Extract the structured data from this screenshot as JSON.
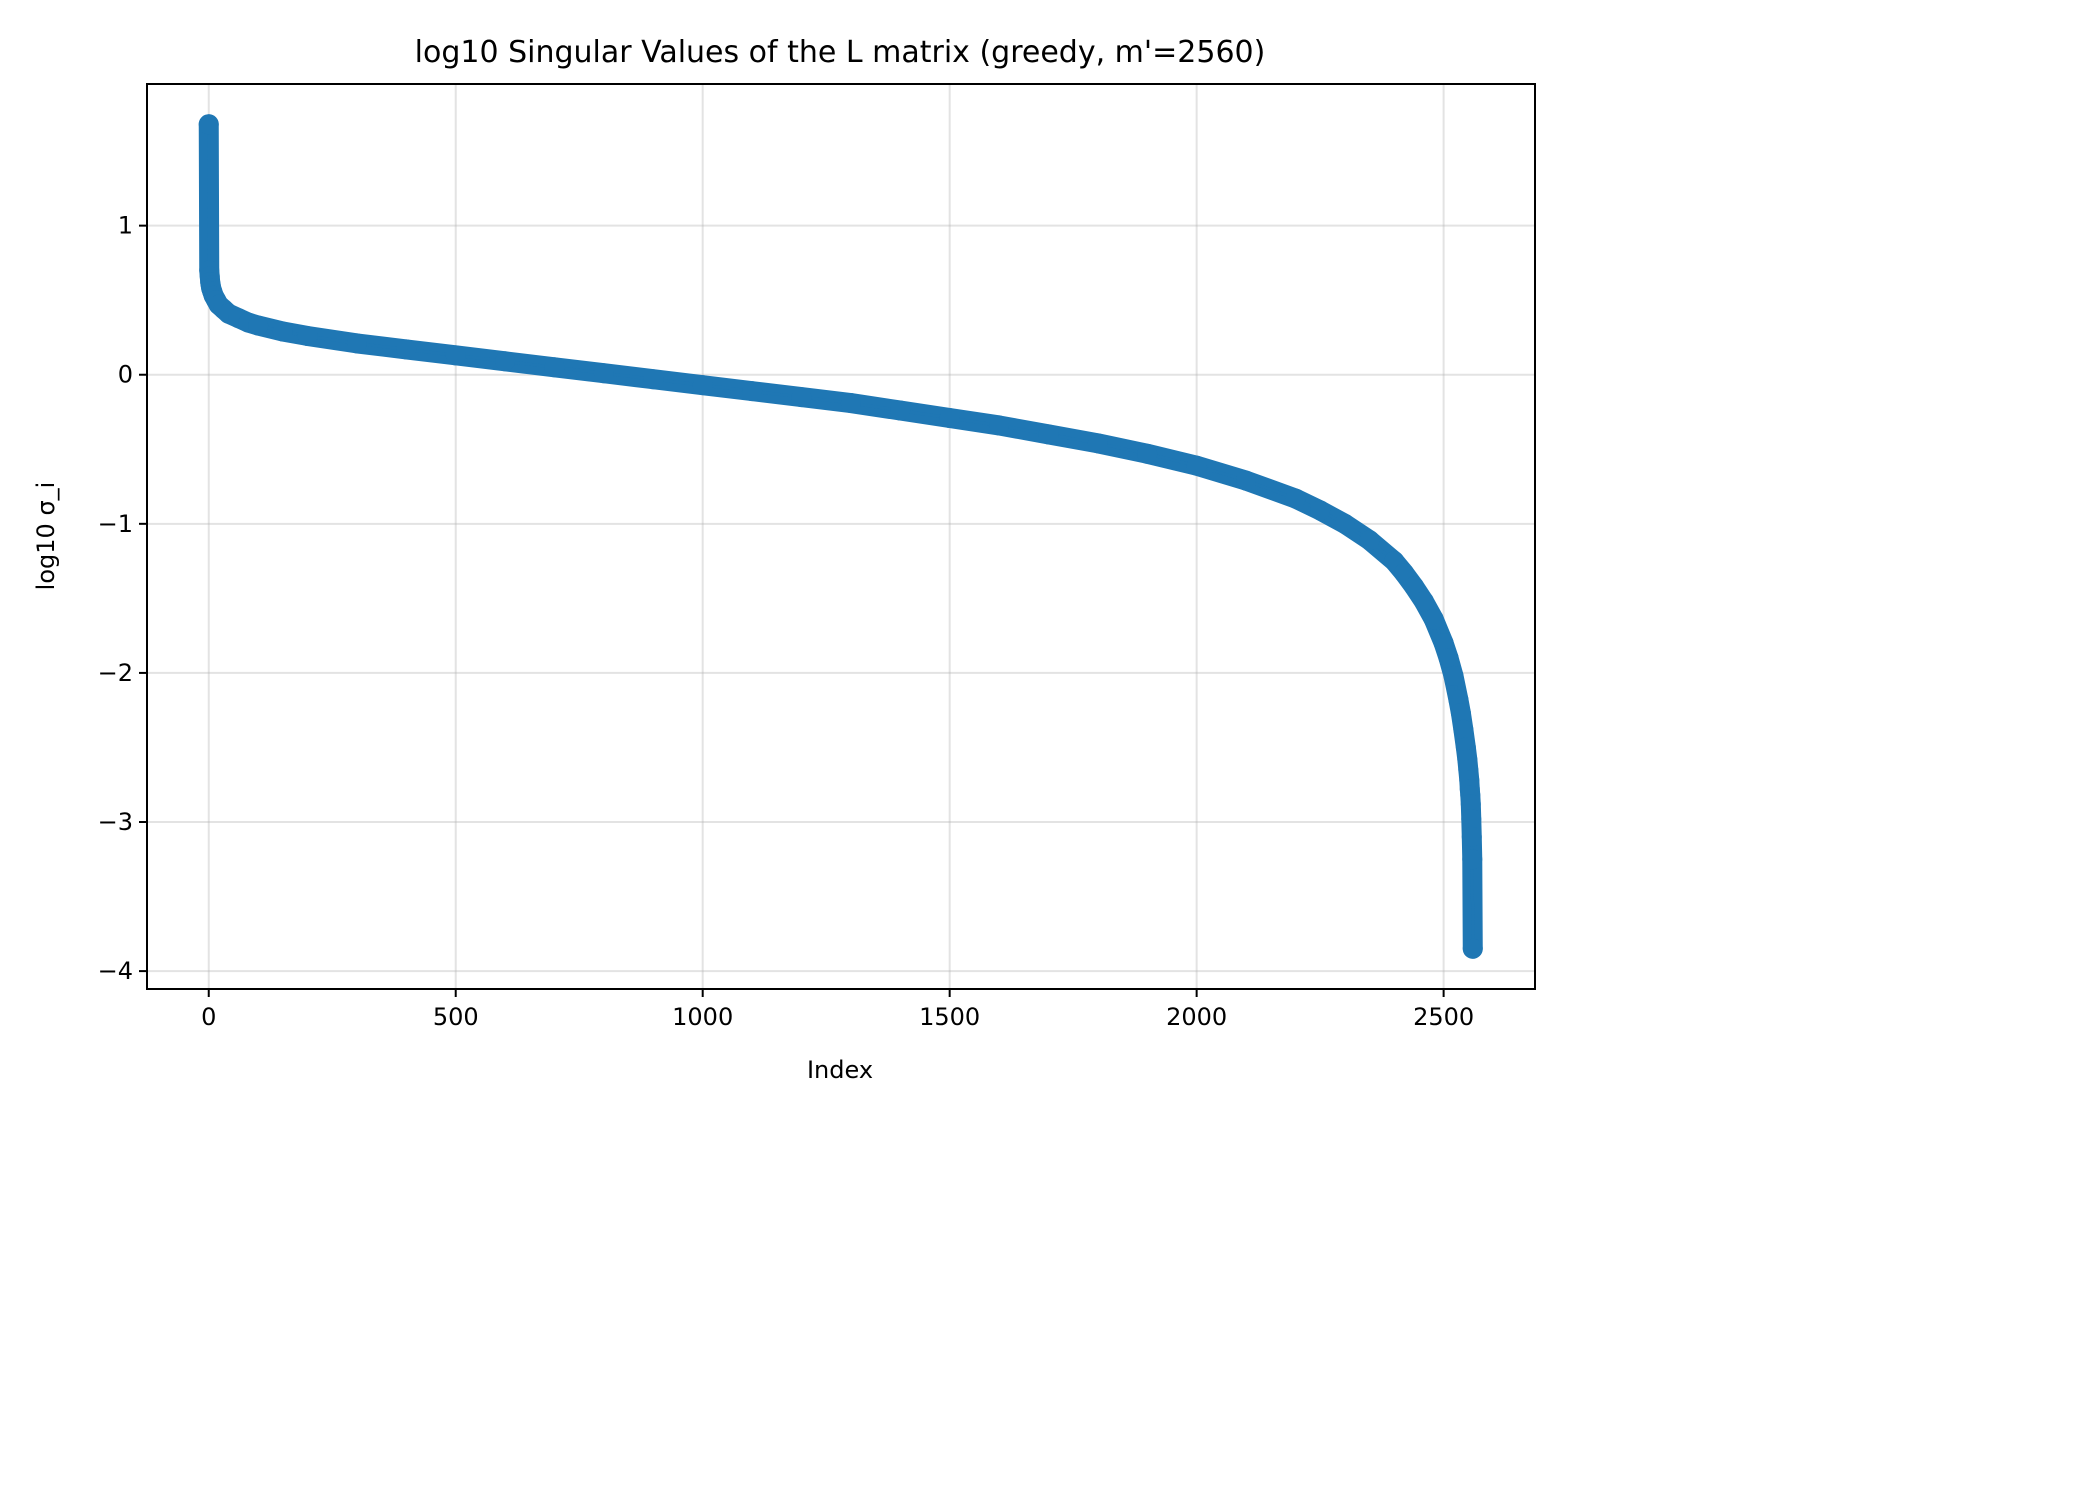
{
  "chart_data": {
    "type": "line",
    "title": "log10 Singular Values of the L matrix (greedy, m'=2560)",
    "xlabel": "Index",
    "ylabel": "log10 σ_i",
    "xlim": [
      -125,
      2685
    ],
    "ylim": [
      -4.12,
      1.95
    ],
    "xticks": [
      0,
      500,
      1000,
      1500,
      2000,
      2500
    ],
    "xtick_labels": [
      "0",
      "500",
      "1000",
      "1500",
      "2000",
      "2500"
    ],
    "yticks": [
      1,
      0,
      -1,
      -2,
      -3,
      -4
    ],
    "ytick_labels": [
      "1",
      "0",
      "−1",
      "−2",
      "−3",
      "−4"
    ],
    "grid": true,
    "series": [
      {
        "name": "log10 σ_i",
        "color": "#1f77b4",
        "marker": "o",
        "x": [
          0,
          1,
          2,
          3,
          4,
          5,
          7,
          10,
          15,
          20,
          30,
          40,
          60,
          80,
          100,
          150,
          200,
          300,
          400,
          500,
          600,
          700,
          800,
          900,
          1000,
          1100,
          1200,
          1300,
          1400,
          1500,
          1600,
          1700,
          1800,
          1900,
          2000,
          2100,
          2200,
          2250,
          2300,
          2350,
          2400,
          2420,
          2440,
          2460,
          2480,
          2500,
          2510,
          2520,
          2530,
          2535,
          2540,
          2545,
          2548,
          2550,
          2552,
          2553,
          2554,
          2555,
          2556,
          2557,
          2558,
          2559
        ],
        "y": [
          1.68,
          0.7,
          0.66,
          0.62,
          0.6,
          0.58,
          0.56,
          0.53,
          0.5,
          0.47,
          0.44,
          0.41,
          0.38,
          0.35,
          0.33,
          0.29,
          0.26,
          0.21,
          0.17,
          0.13,
          0.09,
          0.05,
          0.01,
          -0.03,
          -0.07,
          -0.11,
          -0.15,
          -0.19,
          -0.24,
          -0.29,
          -0.34,
          -0.4,
          -0.46,
          -0.53,
          -0.61,
          -0.71,
          -0.83,
          -0.91,
          -1.0,
          -1.11,
          -1.25,
          -1.33,
          -1.42,
          -1.52,
          -1.64,
          -1.8,
          -1.9,
          -2.02,
          -2.18,
          -2.27,
          -2.38,
          -2.5,
          -2.58,
          -2.65,
          -2.72,
          -2.78,
          -2.82,
          -2.88,
          -2.98,
          -3.1,
          -3.25,
          -3.85
        ]
      }
    ]
  }
}
